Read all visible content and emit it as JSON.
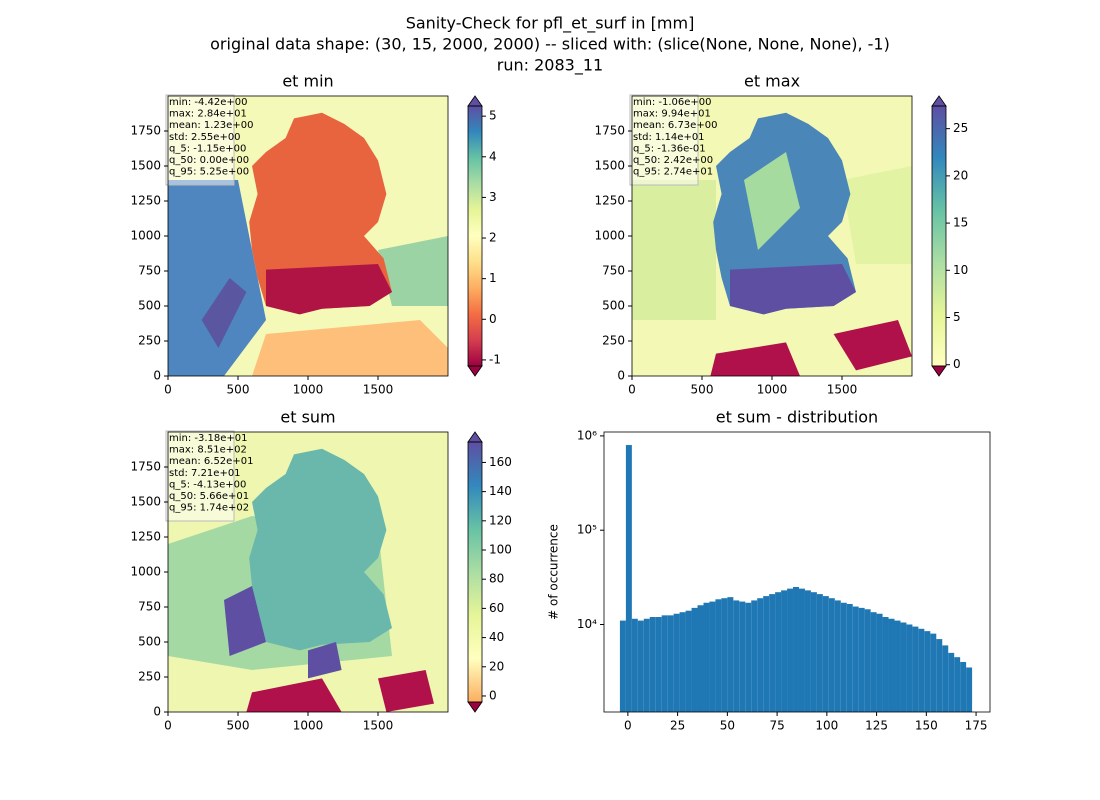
{
  "suptitle": [
    "Sanity-Check for pfl_et_surf in [mm]",
    "original data shape: (30, 15, 2000, 2000) -- sliced with: (slice(None, None, None), -1)",
    "run: 2083_11"
  ],
  "chart_data": [
    {
      "type": "heatmap",
      "title": "et min",
      "xlim": [
        0,
        2000
      ],
      "ylim": [
        0,
        2000
      ],
      "xticks": [
        0,
        500,
        1000,
        1500
      ],
      "yticks": [
        0,
        250,
        500,
        750,
        1000,
        1250,
        1500,
        1750
      ],
      "clim": [
        -1.15,
        5.25
      ],
      "cticks": [
        -1,
        0,
        1,
        2,
        3,
        4,
        5
      ],
      "cmap": [
        "#9e0142",
        "#d53e4f",
        "#f46d43",
        "#fdae61",
        "#fee08b",
        "#ffffbf",
        "#e6f598",
        "#abdda4",
        "#66c2a5",
        "#3288bd",
        "#5e4fa2"
      ],
      "under": "#9e0142",
      "over": "#5e4fa2",
      "stats": [
        "min: -4.42e+00",
        "max: 2.84e+01",
        "mean: 1.23e+00",
        "std: 2.55e+00",
        "q_5: -1.15e+00",
        "q_50: 0.00e+00",
        "q_95: 5.25e+00"
      ]
    },
    {
      "type": "heatmap",
      "title": "et max",
      "xlim": [
        0,
        2000
      ],
      "ylim": [
        0,
        2000
      ],
      "xticks": [
        0,
        500,
        1000,
        1500
      ],
      "yticks": [
        0,
        250,
        500,
        750,
        1000,
        1250,
        1500,
        1750
      ],
      "clim": [
        -0.136,
        27.4
      ],
      "cticks": [
        0,
        5,
        10,
        15,
        20,
        25
      ],
      "cmap": [
        "#ffffbf",
        "#e6f598",
        "#abdda4",
        "#66c2a5",
        "#3288bd",
        "#5e4fa2"
      ],
      "under": "#9e0142",
      "over": "#5e4fa2",
      "stats": [
        "min: -1.06e+00",
        "max: 9.94e+01",
        "mean: 6.73e+00",
        "std: 1.14e+01",
        "q_5: -1.36e-01",
        "q_50: 2.42e+00",
        "q_95: 2.74e+01"
      ]
    },
    {
      "type": "heatmap",
      "title": "et sum",
      "xlim": [
        0,
        2000
      ],
      "ylim": [
        0,
        2000
      ],
      "xticks": [
        0,
        500,
        1000,
        1500
      ],
      "yticks": [
        0,
        250,
        500,
        750,
        1000,
        1250,
        1500,
        1750
      ],
      "clim": [
        -4.13,
        174
      ],
      "cticks": [
        0,
        20,
        40,
        60,
        80,
        100,
        120,
        140,
        160
      ],
      "cmap": [
        "#fdae61",
        "#ffffbf",
        "#e6f598",
        "#abdda4",
        "#66c2a5",
        "#3288bd",
        "#5e4fa2"
      ],
      "under": "#9e0142",
      "over": "#5e4fa2",
      "stats": [
        "min: -3.18e+01",
        "max: 8.51e+02",
        "mean: 6.52e+01",
        "std: 7.21e+01",
        "q_5: -4.13e+00",
        "q_50: 5.66e+01",
        "q_95: 1.74e+02"
      ]
    },
    {
      "type": "histogram",
      "title": "et sum - distribution",
      "ylabel": "# of occurrence",
      "color": "#1f77b4",
      "log_y": true,
      "xlim": [
        -12,
        182
      ],
      "ylim": [
        1180,
        1100000
      ],
      "xticks": [
        0,
        25,
        50,
        75,
        100,
        125,
        150,
        175
      ],
      "yticks": [
        {
          "value": 10000,
          "label": "10⁴"
        },
        {
          "value": 100000,
          "label": "10⁵"
        },
        {
          "value": 1000000,
          "label": "10⁶"
        }
      ],
      "bins": [
        -4,
        -1,
        2,
        5,
        8,
        11,
        14,
        17,
        20,
        23,
        26,
        29,
        32,
        35,
        38,
        41,
        44,
        47,
        50,
        53,
        56,
        59,
        62,
        65,
        68,
        71,
        74,
        77,
        80,
        83,
        86,
        89,
        92,
        95,
        98,
        101,
        104,
        107,
        110,
        113,
        116,
        119,
        122,
        125,
        128,
        131,
        134,
        137,
        140,
        143,
        146,
        149,
        152,
        155,
        158,
        161,
        164,
        167,
        170,
        173
      ],
      "values": [
        11000,
        800000,
        11500,
        11000,
        11500,
        12000,
        12000,
        12500,
        12500,
        13000,
        13500,
        14000,
        15000,
        16000,
        17000,
        17500,
        18500,
        19000,
        19500,
        18000,
        17500,
        17000,
        18000,
        19000,
        20000,
        21000,
        22000,
        23000,
        24000,
        25000,
        24000,
        23000,
        22000,
        21000,
        20000,
        19000,
        18000,
        17000,
        16500,
        15500,
        15000,
        14500,
        13500,
        13000,
        12000,
        11500,
        11000,
        10500,
        10000,
        9500,
        9000,
        8500,
        8000,
        7000,
        6000,
        5000,
        4500,
        4000,
        3500
      ]
    }
  ]
}
